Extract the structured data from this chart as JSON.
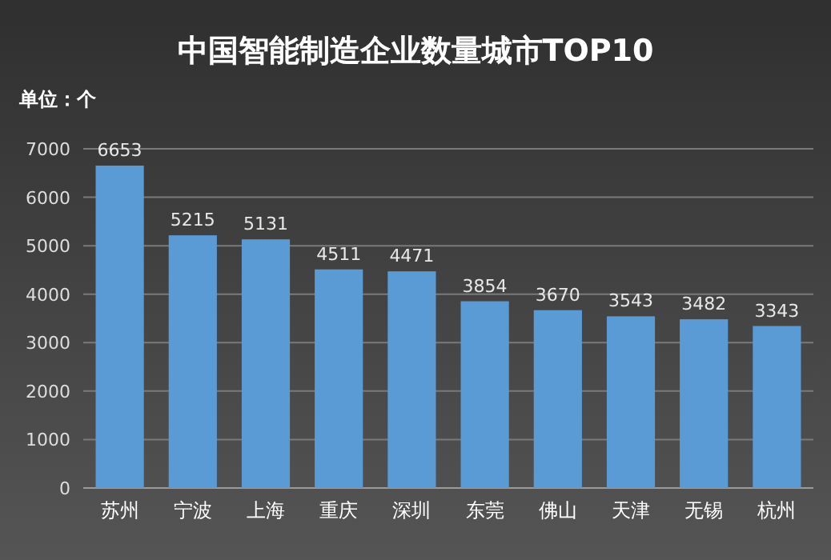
{
  "chart_data": {
    "type": "bar",
    "title": "中国智能制造企业数量城市TOP10",
    "ylabel": "单位：个",
    "categories": [
      "苏州",
      "宁波",
      "上海",
      "重庆",
      "深圳",
      "东莞",
      "佛山",
      "天津",
      "无锡",
      "杭州"
    ],
    "values": [
      6653,
      5215,
      5131,
      4511,
      4471,
      3854,
      3670,
      3543,
      3482,
      3343
    ],
    "color": "#5b9bd5",
    "ylim": [
      0,
      7000
    ],
    "yticks": [
      0,
      1000,
      2000,
      3000,
      4000,
      5000,
      6000,
      7000
    ],
    "grid": "y",
    "data_labels": true
  }
}
